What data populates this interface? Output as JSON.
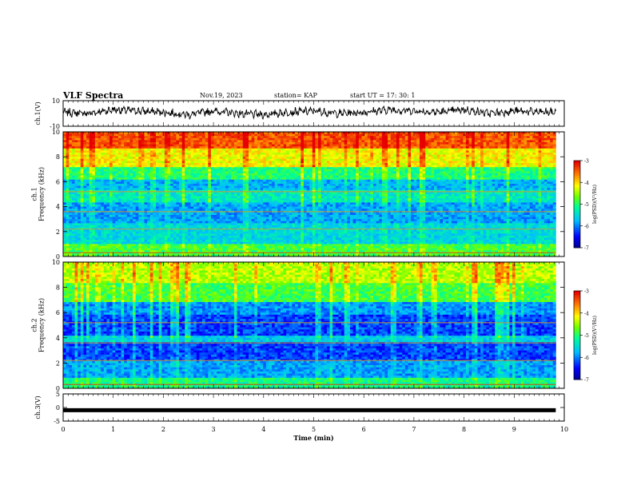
{
  "header": {
    "title": "VLF Spectra",
    "date": "Nov.19, 2023",
    "station": "station= KAP",
    "start": "start  UT  =   17: 30: 1"
  },
  "chart_data": [
    {
      "type": "line",
      "panel": "ch1-waveform",
      "ylabel": "ch.1(V)",
      "ylim": [
        -10,
        10
      ],
      "yticks": [
        "10",
        "-10"
      ],
      "x": [
        0,
        0.5,
        1,
        1.5,
        2,
        2.5,
        3,
        3.5,
        4,
        4.5,
        5,
        5.5,
        6,
        6.5,
        7,
        7.5,
        8,
        8.5,
        9,
        9.5,
        9.83
      ],
      "values": [
        1,
        0,
        3,
        2,
        1,
        -1,
        2,
        0,
        -1,
        1,
        2,
        0,
        1,
        3,
        2,
        1,
        3,
        0,
        2,
        1,
        1
      ],
      "color": "#000000"
    },
    {
      "type": "heatmap",
      "panel": "ch1-spectrogram",
      "ylabel": "ch.1\nFrequency (kHz)",
      "ylim": [
        0,
        10
      ],
      "yticks": [
        "0",
        "2",
        "4",
        "6",
        "8",
        "10"
      ],
      "xlim": [
        0,
        9.83
      ],
      "colorbar": {
        "ticks": [
          "-3",
          "-4",
          "-5",
          "-6",
          "-7"
        ],
        "label": "log(PSD)(V²/Hz)",
        "range": [
          -7,
          -3
        ]
      }
    },
    {
      "type": "heatmap",
      "panel": "ch2-spectrogram",
      "ylabel": "ch.2\nFrequency (kHz)",
      "ylim": [
        0,
        10
      ],
      "yticks": [
        "0",
        "2",
        "4",
        "6",
        "8",
        "10"
      ],
      "xlim": [
        0,
        9.83
      ],
      "colorbar": {
        "ticks": [
          "-3",
          "-4",
          "-5",
          "-6",
          "-7"
        ],
        "label": "log(PSD)(V²/Hz)",
        "range": [
          -7,
          -3
        ]
      }
    },
    {
      "type": "line",
      "panel": "ch3-waveform",
      "ylabel": "ch.3(V)",
      "ylim": [
        -5,
        5
      ],
      "yticks": [
        "5",
        "0",
        "-5"
      ],
      "x": [
        0,
        9.83
      ],
      "values": [
        -1,
        -1
      ],
      "color": "#000000"
    }
  ],
  "xaxis": {
    "label": "Time (min)",
    "ticks": [
      "0",
      "1",
      "2",
      "3",
      "4",
      "5",
      "6",
      "7",
      "8",
      "9",
      "10"
    ],
    "range": [
      0,
      10
    ]
  }
}
